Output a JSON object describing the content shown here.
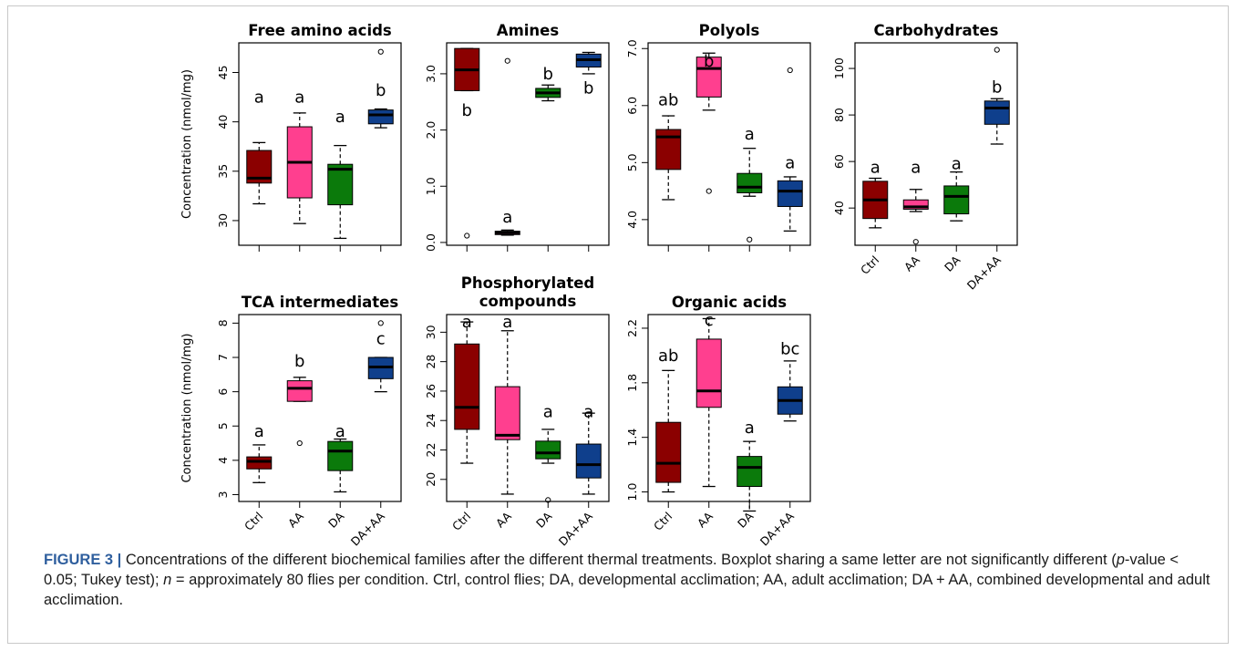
{
  "colors": {
    "Ctrl": "#8b0000",
    "AA": "#ff3f8f",
    "DA": "#0b7a0b",
    "DA+AA": "#0f3f8c"
  },
  "caption": {
    "label": "FIGURE 3 |",
    "s1": " Concentrations of the different biochemical families after the different thermal treatments. Boxplot sharing a same letter are not significantly different (",
    "p": "p",
    "s2": "-value < 0.05; Tukey test); ",
    "n": "n",
    "s3": " = approximately 80 flies per condition. Ctrl, control flies; DA, developmental acclimation; AA, adult acclimation; DA + AA, combined developmental and adult acclimation."
  },
  "chart_data": [
    {
      "type": "box",
      "title": "Free amino acids",
      "ylabel": "Concentration (nmol/mg)",
      "ylim": [
        27.5,
        48
      ],
      "yticks": [
        30,
        35,
        40,
        45
      ],
      "ytick_labels": [
        "30",
        "35",
        "40",
        "45"
      ],
      "categories": [
        "Ctrl",
        "AA",
        "DA",
        "DA+AA"
      ],
      "show_xlabels": false,
      "boxes": [
        {
          "group": "Ctrl",
          "min": 31.7,
          "q1": 33.8,
          "median": 34.3,
          "q3": 37.1,
          "max": 37.9,
          "outliers": [],
          "letter": "a",
          "letter_y": 42.5
        },
        {
          "group": "AA",
          "min": 29.7,
          "q1": 32.3,
          "median": 35.9,
          "q3": 39.5,
          "max": 40.9,
          "outliers": [],
          "letter": "a",
          "letter_y": 42.5
        },
        {
          "group": "DA",
          "min": 28.2,
          "q1": 31.6,
          "median": 35.2,
          "q3": 35.7,
          "max": 37.6,
          "outliers": [],
          "letter": "a",
          "letter_y": 40.5
        },
        {
          "group": "DA+AA",
          "min": 39.4,
          "q1": 39.8,
          "median": 40.7,
          "q3": 41.2,
          "max": 41.3,
          "outliers": [
            47.1
          ],
          "letter": "b",
          "letter_y": 43.2
        }
      ]
    },
    {
      "type": "box",
      "title": "Amines",
      "ylabel": "",
      "ylim": [
        -0.05,
        3.55
      ],
      "yticks": [
        0,
        1,
        2,
        3
      ],
      "ytick_labels": [
        "0.0",
        "1.0",
        "2.0",
        "3.0"
      ],
      "categories": [
        "Ctrl",
        "AA",
        "DA",
        "DA+AA"
      ],
      "show_xlabels": false,
      "boxes": [
        {
          "group": "Ctrl",
          "min": 2.7,
          "q1": 2.7,
          "median": 3.07,
          "q3": 3.45,
          "max": 3.45,
          "outliers": [
            0.12
          ],
          "letter": "b",
          "letter_y": 2.35
        },
        {
          "group": "AA",
          "min": 0.13,
          "q1": 0.14,
          "median": 0.17,
          "q3": 0.2,
          "max": 0.22,
          "outliers": [
            3.23
          ],
          "letter": "a",
          "letter_y": 0.45
        },
        {
          "group": "DA",
          "min": 2.52,
          "q1": 2.58,
          "median": 2.66,
          "q3": 2.74,
          "max": 2.8,
          "outliers": [],
          "letter": "b",
          "letter_y": 3.0
        },
        {
          "group": "DA+AA",
          "min": 3.0,
          "q1": 3.12,
          "median": 3.25,
          "q3": 3.35,
          "max": 3.38,
          "outliers": [],
          "letter": "b",
          "letter_y": 2.75
        }
      ]
    },
    {
      "type": "box",
      "title": "Polyols",
      "ylabel": "",
      "ylim": [
        3.55,
        7.1
      ],
      "yticks": [
        4,
        5,
        6,
        7
      ],
      "ytick_labels": [
        "4.0",
        "5.0",
        "6.0",
        "7.0"
      ],
      "categories": [
        "Ctrl",
        "AA",
        "DA",
        "DA+AA"
      ],
      "show_xlabels": false,
      "boxes": [
        {
          "group": "Ctrl",
          "min": 4.35,
          "q1": 4.88,
          "median": 5.45,
          "q3": 5.58,
          "max": 5.82,
          "outliers": [],
          "letter": "ab",
          "letter_y": 6.1
        },
        {
          "group": "AA",
          "min": 5.92,
          "q1": 6.15,
          "median": 6.65,
          "q3": 6.85,
          "max": 6.92,
          "outliers": [
            4.5
          ],
          "letter": "b",
          "letter_y": 6.78
        },
        {
          "group": "DA",
          "min": 4.41,
          "q1": 4.47,
          "median": 4.57,
          "q3": 4.81,
          "max": 5.25,
          "outliers": [
            3.65
          ],
          "letter": "a",
          "letter_y": 5.5
        },
        {
          "group": "DA+AA",
          "min": 3.8,
          "q1": 4.23,
          "median": 4.5,
          "q3": 4.68,
          "max": 4.75,
          "outliers": [
            6.62
          ],
          "letter": "a",
          "letter_y": 5.0
        }
      ]
    },
    {
      "type": "box",
      "title": "Carbohydrates",
      "ylabel": "",
      "ylim": [
        24,
        111
      ],
      "yticks": [
        40,
        60,
        80,
        100
      ],
      "ytick_labels": [
        "40",
        "60",
        "80",
        "100"
      ],
      "categories": [
        "Ctrl",
        "AA",
        "DA",
        "DA+AA"
      ],
      "show_xlabels": true,
      "boxes": [
        {
          "group": "Ctrl",
          "min": 31.5,
          "q1": 35.5,
          "median": 43.5,
          "q3": 51.5,
          "max": 52.8,
          "outliers": [],
          "letter": "a",
          "letter_y": 57.5
        },
        {
          "group": "AA",
          "min": 38.5,
          "q1": 39.5,
          "median": 40.5,
          "q3": 43.5,
          "max": 48.0,
          "outliers": [
            25.5
          ],
          "letter": "a",
          "letter_y": 57.5
        },
        {
          "group": "DA",
          "min": 34.5,
          "q1": 37.5,
          "median": 45.0,
          "q3": 49.5,
          "max": 55.5,
          "outliers": [],
          "letter": "a",
          "letter_y": 59.0
        },
        {
          "group": "DA+AA",
          "min": 67.5,
          "q1": 76.0,
          "median": 83.0,
          "q3": 86.0,
          "max": 87.0,
          "outliers": [
            108.0
          ],
          "letter": "b",
          "letter_y": 92.0
        }
      ]
    },
    {
      "type": "box",
      "title": "TCA intermediates",
      "ylabel": "Concentration (nmol/mg)",
      "ylim": [
        2.8,
        8.25
      ],
      "yticks": [
        3,
        4,
        5,
        6,
        7,
        8
      ],
      "ytick_labels": [
        "3",
        "4",
        "5",
        "6",
        "7",
        "8"
      ],
      "categories": [
        "Ctrl",
        "AA",
        "DA",
        "DA+AA"
      ],
      "show_xlabels": true,
      "boxes": [
        {
          "group": "Ctrl",
          "min": 3.35,
          "q1": 3.75,
          "median": 3.97,
          "q3": 4.1,
          "max": 4.45,
          "outliers": [],
          "letter": "a",
          "letter_y": 4.85
        },
        {
          "group": "AA",
          "min": 5.72,
          "q1": 5.72,
          "median": 6.1,
          "q3": 6.32,
          "max": 6.42,
          "outliers": [
            4.5
          ],
          "letter": "b",
          "letter_y": 6.9
        },
        {
          "group": "DA",
          "min": 3.08,
          "q1": 3.7,
          "median": 4.27,
          "q3": 4.55,
          "max": 4.62,
          "outliers": [],
          "letter": "a",
          "letter_y": 4.85
        },
        {
          "group": "DA+AA",
          "min": 6.0,
          "q1": 6.38,
          "median": 6.72,
          "q3": 7.0,
          "max": 7.0,
          "outliers": [
            8.0
          ],
          "letter": "c",
          "letter_y": 7.55
        }
      ]
    },
    {
      "type": "box",
      "title": "Phosphorylated compounds",
      "ylabel": "",
      "ylim": [
        18.5,
        31.2
      ],
      "yticks": [
        20,
        22,
        24,
        26,
        28,
        30
      ],
      "ytick_labels": [
        "20",
        "22",
        "24",
        "26",
        "28",
        "30"
      ],
      "categories": [
        "Ctrl",
        "AA",
        "DA",
        "DA+AA"
      ],
      "show_xlabels": true,
      "boxes": [
        {
          "group": "Ctrl",
          "min": 21.1,
          "q1": 23.4,
          "median": 24.9,
          "q3": 29.2,
          "max": 30.7,
          "outliers": [],
          "letter": "a",
          "letter_y": 30.7
        },
        {
          "group": "AA",
          "min": 19.0,
          "q1": 22.7,
          "median": 23.0,
          "q3": 26.3,
          "max": 30.1,
          "outliers": [],
          "letter": "a",
          "letter_y": 30.7
        },
        {
          "group": "DA",
          "min": 21.1,
          "q1": 21.4,
          "median": 21.8,
          "q3": 22.6,
          "max": 23.4,
          "outliers": [
            18.6
          ],
          "letter": "a",
          "letter_y": 24.6
        },
        {
          "group": "DA+AA",
          "min": 19.0,
          "q1": 20.1,
          "median": 21.0,
          "q3": 22.4,
          "max": 24.5,
          "outliers": [],
          "letter": "a",
          "letter_y": 24.6
        }
      ]
    },
    {
      "type": "box",
      "title": "Organic acids",
      "ylabel": "",
      "ylim": [
        0.93,
        2.3
      ],
      "yticks": [
        1.0,
        1.4,
        1.8,
        2.2
      ],
      "ytick_labels": [
        "1.0",
        "1.4",
        "1.8",
        "2.2"
      ],
      "categories": [
        "Ctrl",
        "AA",
        "DA",
        "DA+AA"
      ],
      "show_xlabels": true,
      "boxes": [
        {
          "group": "Ctrl",
          "min": 1.0,
          "q1": 1.07,
          "median": 1.21,
          "q3": 1.51,
          "max": 1.89,
          "outliers": [],
          "letter": "ab",
          "letter_y": 2.0
        },
        {
          "group": "AA",
          "min": 1.04,
          "q1": 1.62,
          "median": 1.74,
          "q3": 2.12,
          "max": 2.27,
          "outliers": [],
          "letter": "c",
          "letter_y": 2.26
        },
        {
          "group": "DA",
          "min": 0.86,
          "q1": 1.04,
          "median": 1.18,
          "q3": 1.26,
          "max": 1.37,
          "outliers": [],
          "letter": "a",
          "letter_y": 1.47
        },
        {
          "group": "DA+AA",
          "min": 1.52,
          "q1": 1.57,
          "median": 1.67,
          "q3": 1.77,
          "max": 1.96,
          "outliers": [],
          "letter": "bc",
          "letter_y": 2.05
        }
      ]
    }
  ]
}
